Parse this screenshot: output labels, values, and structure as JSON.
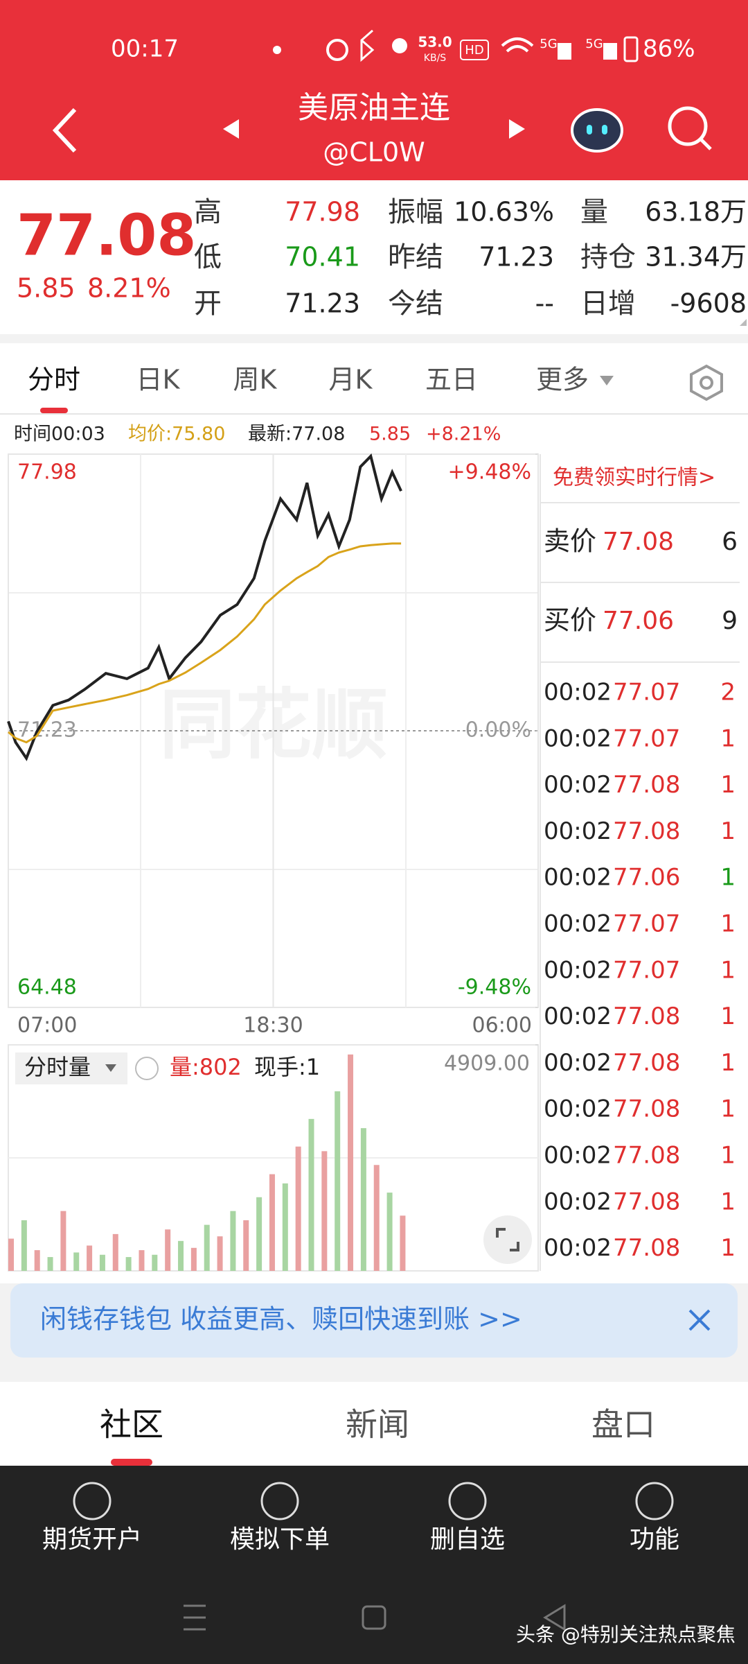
{
  "status_bar": {
    "time": "00:17",
    "speed": "53.0",
    "speed_unit": "KB/S",
    "hd": "HD",
    "net1": "5G",
    "net2": "5G",
    "battery": "86%"
  },
  "header": {
    "title": "美原油主连",
    "code": "@CL0W"
  },
  "quote": {
    "price": "77.08",
    "change": "5.85",
    "change_pct": "8.21%",
    "stats": [
      [
        "高",
        "77.98",
        "振幅",
        "10.63%",
        "量",
        "63.18万"
      ],
      [
        "低",
        "70.41",
        "昨结",
        "71.23",
        "持仓",
        "31.34万"
      ],
      [
        "开",
        "71.23",
        "今结",
        "--",
        "日增",
        "-9608"
      ]
    ]
  },
  "tabs": [
    "分时",
    "日K",
    "周K",
    "月K",
    "五日",
    "更多"
  ],
  "info": {
    "time": "时间00:03",
    "avg": "均价:75.80",
    "latest": "最新:77.08",
    "change": "5.85",
    "change_pct": "+8.21%"
  },
  "watermark": "同花顺",
  "chart_data": [
    {
      "type": "line",
      "x": [
        0,
        19,
        47,
        74,
        116,
        157,
        199,
        254,
        309,
        364,
        392,
        419,
        461,
        502,
        552,
        596,
        640,
        668,
        709,
        751,
        778,
        806,
        834,
        861,
        889,
        917,
        944,
        972,
        1000,
        1023
      ],
      "series": [
        {
          "color": "#222222",
          "values": [
            71.46,
            70.95,
            70.56,
            71.2,
            71.85,
            71.98,
            72.24,
            72.63,
            72.5,
            72.76,
            73.27,
            72.5,
            73.01,
            73.4,
            74.05,
            74.31,
            74.95,
            75.86,
            76.89,
            76.38,
            77.28,
            75.99,
            76.51,
            75.73,
            76.38,
            77.67,
            77.93,
            76.89,
            77.54,
            77.08
          ]
        },
        {
          "color": "#d9a31a",
          "values": [
            71.2,
            71.05,
            70.95,
            71.1,
            71.72,
            71.8,
            71.88,
            71.98,
            72.1,
            72.25,
            72.37,
            72.45,
            72.65,
            72.89,
            73.2,
            73.53,
            73.95,
            74.31,
            74.65,
            74.95,
            75.1,
            75.25,
            75.47,
            75.58,
            75.65,
            75.73,
            75.76,
            75.78,
            75.8,
            75.8
          ]
        }
      ],
      "xlim": [
        0,
        1380
      ],
      "xticks": [
        {
          "value": 0,
          "label": "07:00"
        },
        {
          "value": 690,
          "label": "18:30"
        },
        {
          "value": 1380,
          "label": "06:00"
        }
      ],
      "ylim": [
        64.48,
        77.98
      ],
      "yticks": [
        77.98,
        71.23,
        64.48
      ],
      "y2lim": [
        -9.48,
        9.48
      ],
      "y2ticks": [
        {
          "value": 9.48,
          "label": "+9.48%"
        },
        {
          "value": 0,
          "label": "0.00%"
        },
        {
          "value": -9.48,
          "label": "-9.48%"
        }
      ],
      "grid": true
    },
    {
      "type": "bar",
      "title": "分时量",
      "volume": "量:802",
      "hand": "现手:1",
      "x": [
        0,
        34,
        68,
        102,
        136,
        170,
        204,
        238,
        272,
        306,
        340,
        374,
        408,
        442,
        476,
        510,
        544,
        578,
        612,
        646,
        680,
        714,
        748,
        782,
        816,
        850,
        884,
        918,
        952,
        986,
        1020
      ],
      "values": [
        700,
        1100,
        450,
        300,
        1300,
        400,
        550,
        350,
        800,
        300,
        450,
        350,
        900,
        650,
        500,
        1000,
        750,
        1300,
        1100,
        1600,
        2100,
        1900,
        2700,
        3300,
        2600,
        3900,
        4700,
        3100,
        2300,
        1700,
        1200
      ],
      "colors": [
        "#e9a0a0",
        "#a8d5a2"
      ],
      "xlim": [
        0,
        1380
      ],
      "ylim": [
        0,
        4909
      ],
      "yticks": [
        {
          "value": 4909,
          "label": "4909.00"
        }
      ]
    }
  ],
  "right_panel": {
    "link": "免费领实时行情>",
    "ask": [
      "卖价",
      "77.08",
      "6"
    ],
    "bid": [
      "买价",
      "77.06",
      "9"
    ],
    "trades": [
      [
        "00:02",
        "77.07",
        "2"
      ],
      [
        "00:02",
        "77.07",
        "1"
      ],
      [
        "00:02",
        "77.08",
        "1"
      ],
      [
        "00:02",
        "77.08",
        "1"
      ],
      [
        "00:02",
        "77.06",
        "1"
      ],
      [
        "00:02",
        "77.07",
        "1"
      ],
      [
        "00:02",
        "77.07",
        "1"
      ],
      [
        "00:02",
        "77.08",
        "1"
      ],
      [
        "00:02",
        "77.08",
        "1"
      ],
      [
        "00:02",
        "77.08",
        "1"
      ],
      [
        "00:02",
        "77.08",
        "1"
      ],
      [
        "00:02",
        "77.08",
        "1"
      ],
      [
        "00:02",
        "77.08",
        "1"
      ]
    ],
    "volume_colors": [
      "#e02e2e",
      "#e02e2e",
      "#e02e2e",
      "#e02e2e",
      "#1a9a1a",
      "#e02e2e",
      "#e02e2e",
      "#e02e2e",
      "#e02e2e",
      "#e02e2e",
      "#e02e2e",
      "#e02e2e",
      "#e02e2e"
    ]
  },
  "banner": "闲钱存钱包 收益更高、赎回快速到账 >>",
  "sub_tabs": [
    "社区",
    "新闻",
    "盘口"
  ],
  "nav": [
    "期货开户",
    "模拟下单",
    "删自选",
    "功能"
  ],
  "footer_watermark": "头条 @特别关注热点聚焦"
}
